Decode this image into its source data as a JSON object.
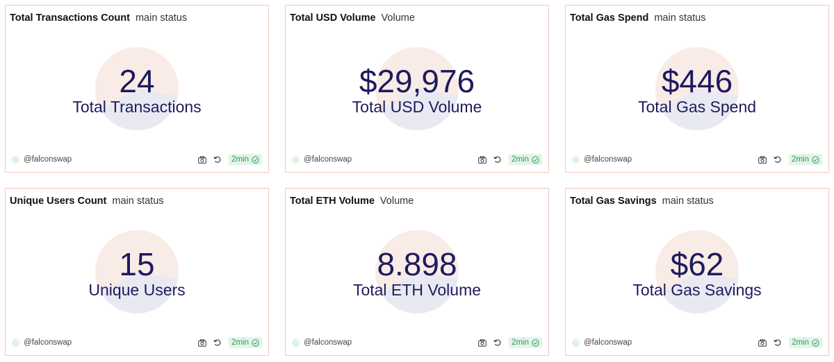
{
  "cards": [
    {
      "title": "Total Transactions Count",
      "subtitle": "main status",
      "value": "24",
      "label": "Total Transactions",
      "user": "@falconswap",
      "refresh": "2min"
    },
    {
      "title": "Total USD Volume",
      "subtitle": "Volume",
      "value": "$29,976",
      "label": "Total USD Volume",
      "user": "@falconswap",
      "refresh": "2min"
    },
    {
      "title": "Total Gas Spend",
      "subtitle": "main status",
      "value": "$446",
      "label": "Total Gas Spend",
      "user": "@falconswap",
      "refresh": "2min"
    },
    {
      "title": "Unique Users Count",
      "subtitle": "main status",
      "value": "15",
      "label": "Unique Users",
      "user": "@falconswap",
      "refresh": "2min"
    },
    {
      "title": "Total ETH Volume",
      "subtitle": "Volume",
      "value": "8.898",
      "label": "Total ETH Volume",
      "user": "@falconswap",
      "refresh": "2min"
    },
    {
      "title": "Total Gas Savings",
      "subtitle": "main status",
      "value": "$62",
      "label": "Total Gas Savings",
      "user": "@falconswap",
      "refresh": "2min"
    }
  ],
  "icons": {
    "camera": "camera-icon",
    "refresh": "refresh-icon",
    "check": "check-circle-icon"
  },
  "colors": {
    "border": "#efc9bd",
    "value_text": "#1d1b5e",
    "status_green": "#2e9b57",
    "status_bg": "#e3f5e9"
  }
}
